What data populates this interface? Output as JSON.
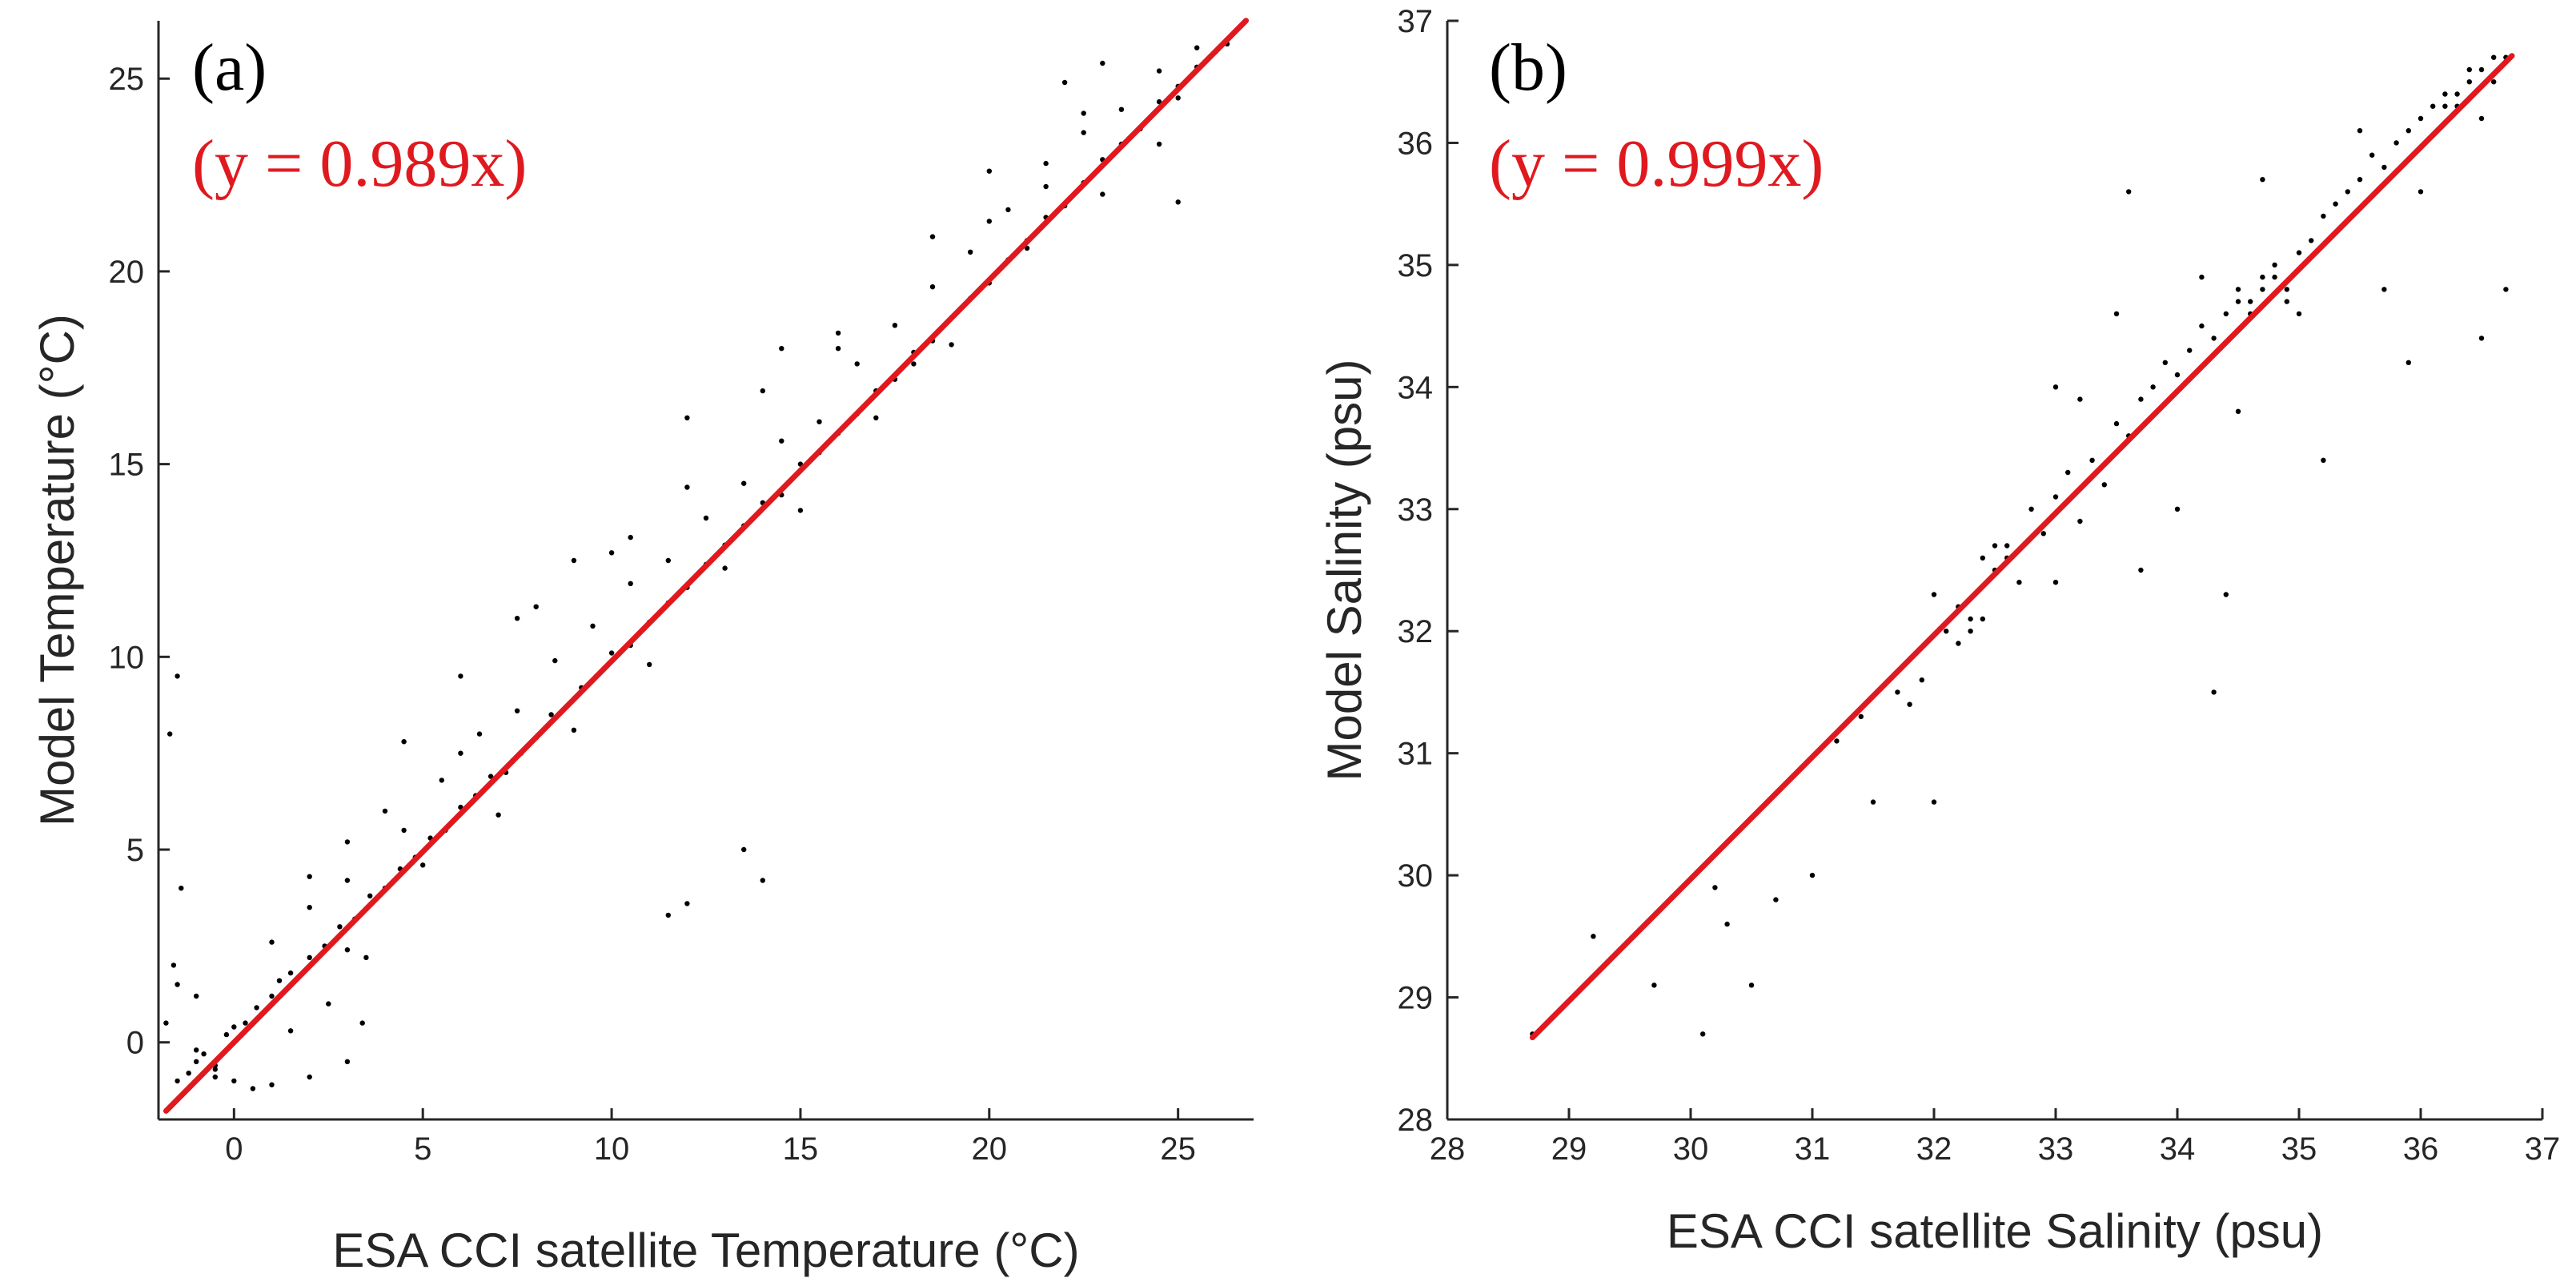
{
  "chart_data": [
    {
      "type": "scatter",
      "panel_label": "(a)",
      "equation": "(y = 0.989x)",
      "xlabel": "ESA CCI satellite Temperature (°C)",
      "ylabel": "Model Temperature (°C)",
      "xlim": [
        -2,
        27
      ],
      "ylim": [
        -2,
        26.5
      ],
      "xticks": [
        0,
        5,
        10,
        15,
        20,
        25
      ],
      "yticks": [
        0,
        5,
        10,
        15,
        20,
        25
      ],
      "grid": false,
      "fit_line": {
        "slope": 0.989,
        "x_range": [
          -1.8,
          26.8
        ],
        "color": "#e0191f"
      },
      "point_color": "#000000",
      "series": [
        {
          "description_of_points": "dense cloud of matched temperature pairs",
          "x": [
            -1.5,
            -1.2,
            -1.0,
            -0.8,
            -0.5,
            -0.2,
            0.0,
            0.3,
            0.6,
            1.0,
            1.2,
            1.5,
            2.0,
            2.4,
            2.8,
            3.2,
            3.6,
            4.0,
            4.4,
            4.8,
            5.2,
            5.6,
            6.0,
            6.4,
            6.8,
            7.2,
            7.6,
            8.0,
            8.4,
            8.8,
            9.2,
            9.6,
            10.0,
            10.5,
            11.0,
            11.5,
            12.0,
            12.5,
            13.0,
            13.5,
            14.0,
            14.5,
            15.0,
            15.5,
            16.0,
            16.5,
            17.0,
            17.5,
            18.0,
            18.5,
            19.0,
            19.5,
            20.0,
            20.5,
            21.0,
            21.5,
            22.0,
            22.5,
            23.0,
            23.5,
            24.0,
            24.5,
            25.0,
            25.5,
            26.0,
            26.3,
            -1.8,
            -1.6,
            -1.4,
            -1.0,
            0.5,
            1.0,
            2.0,
            2.5,
            3.0,
            3.5,
            4.5,
            5.5,
            6.5,
            7.5,
            8.5,
            9.5,
            10.5,
            11.5,
            12.5,
            13.5,
            14.5,
            15.5,
            16.5,
            17.5,
            18.5,
            19.5,
            20.5,
            21.5,
            22.5,
            23.5,
            24.5,
            25.5,
            -1.7,
            -1.5,
            -0.5,
            1.5,
            3.0,
            5.0,
            7.0,
            9.0,
            11.0,
            13.0,
            15.0,
            17.0,
            19.0,
            21.0,
            23.0,
            25.0,
            8.0,
            10.0,
            12.0,
            14.0,
            16.0,
            18.0,
            20.0,
            22.0,
            6.0,
            4.0,
            2.0,
            21.5,
            22.5,
            23.0,
            24.5,
            25.0,
            12.0,
            14.5,
            16.0,
            18.5,
            20.0,
            10.5,
            9.0,
            7.5,
            6.0,
            4.5,
            3.0,
            -1.5,
            -1.0,
            -0.5,
            0.0,
            1.0,
            2.0,
            3.0,
            3.4,
            13.5,
            14.0,
            12.0,
            11.5
          ],
          "y": [
            -1.0,
            -0.8,
            -0.5,
            -0.3,
            -0.6,
            0.2,
            0.4,
            0.5,
            0.9,
            1.2,
            1.6,
            1.8,
            2.2,
            2.5,
            3.0,
            3.2,
            3.8,
            4.0,
            4.5,
            4.8,
            5.3,
            5.5,
            6.1,
            6.4,
            6.9,
            7.0,
            7.5,
            7.9,
            8.5,
            8.7,
            9.2,
            9.5,
            10.1,
            10.3,
            10.9,
            11.4,
            11.8,
            12.4,
            12.9,
            13.4,
            14.0,
            14.2,
            15.0,
            15.3,
            15.8,
            16.3,
            16.9,
            17.2,
            17.9,
            18.2,
            18.8,
            19.3,
            19.7,
            20.3,
            20.8,
            21.4,
            21.7,
            22.3,
            22.9,
            23.3,
            23.7,
            24.4,
            24.8,
            25.3,
            25.7,
            25.9,
            0.5,
            2.0,
            4.0,
            -0.2,
            -1.2,
            2.6,
            3.5,
            1.0,
            4.2,
            2.2,
            5.5,
            6.8,
            8.0,
            8.6,
            9.9,
            10.8,
            11.9,
            12.5,
            13.6,
            14.5,
            15.6,
            16.1,
            17.6,
            18.6,
            19.6,
            20.5,
            21.6,
            22.2,
            23.6,
            24.2,
            25.2,
            25.8,
            8.0,
            9.5,
            -0.9,
            0.3,
            2.4,
            4.6,
            5.9,
            8.1,
            9.8,
            12.3,
            13.8,
            16.2,
            18.1,
            20.6,
            22.0,
            24.5,
            11.3,
            12.7,
            14.4,
            16.9,
            18.0,
            17.6,
            22.6,
            24.9,
            7.5,
            6.0,
            4.3,
            22.8,
            24.1,
            25.4,
            23.3,
            21.8,
            16.2,
            18.0,
            18.4,
            20.9,
            21.3,
            13.1,
            12.5,
            11.0,
            9.5,
            7.8,
            5.2,
            1.5,
            1.2,
            -0.7,
            -1.0,
            -1.1,
            -0.9,
            -0.5,
            0.5,
            5.0,
            4.2,
            3.6,
            3.3
          ]
        }
      ]
    },
    {
      "type": "scatter",
      "panel_label": "(b)",
      "equation": "(y = 0.999x)",
      "xlabel": "ESA CCI satellite Salinity (psu)",
      "ylabel": "Model Salinity (psu)",
      "xlim": [
        28,
        37
      ],
      "ylim": [
        28,
        37
      ],
      "xticks": [
        28,
        29,
        30,
        31,
        32,
        33,
        34,
        35,
        36,
        37
      ],
      "yticks": [
        28,
        29,
        30,
        31,
        32,
        33,
        34,
        35,
        36,
        37
      ],
      "grid": false,
      "fit_line": {
        "slope": 0.999,
        "x_range": [
          28.7,
          36.75
        ],
        "color": "#e0191f"
      },
      "point_color": "#000000",
      "series": [
        {
          "description_of_points": "matched salinity pairs",
          "x": [
            28.7,
            29.2,
            29.7,
            30.1,
            30.2,
            30.3,
            30.5,
            30.7,
            31.0,
            31.2,
            31.4,
            31.5,
            31.7,
            31.9,
            32.0,
            32.1,
            32.2,
            32.3,
            32.4,
            32.5,
            32.6,
            32.7,
            32.8,
            32.9,
            33.0,
            33.1,
            33.2,
            33.3,
            33.4,
            33.5,
            33.6,
            33.7,
            33.8,
            33.9,
            34.0,
            34.1,
            34.2,
            34.3,
            34.4,
            34.5,
            34.6,
            34.7,
            34.8,
            34.9,
            35.0,
            35.1,
            35.2,
            35.3,
            35.4,
            35.5,
            35.6,
            35.7,
            35.8,
            35.9,
            36.0,
            36.1,
            36.2,
            36.3,
            36.4,
            36.5,
            36.6,
            36.7,
            32.3,
            32.4,
            32.5,
            32.2,
            32.6,
            34.6,
            34.7,
            34.8,
            34.5,
            34.9,
            36.3,
            36.4,
            36.5,
            36.6,
            36.2,
            33.0,
            33.5,
            34.0,
            34.5,
            35.0,
            35.5,
            36.0,
            33.2,
            33.7,
            34.2,
            34.7,
            35.2,
            35.7,
            36.5,
            31.8,
            32.0,
            33.0,
            33.6,
            34.3,
            34.4,
            35.9,
            36.7
          ],
          "y": [
            28.7,
            29.5,
            29.1,
            28.7,
            29.9,
            29.6,
            29.1,
            29.8,
            30.0,
            31.1,
            31.3,
            30.6,
            31.5,
            31.6,
            32.3,
            32.0,
            32.2,
            32.1,
            32.6,
            32.5,
            32.7,
            32.4,
            33.0,
            32.8,
            33.1,
            33.3,
            32.9,
            33.4,
            33.2,
            33.7,
            33.6,
            33.9,
            34.0,
            34.2,
            34.1,
            34.3,
            34.5,
            34.4,
            34.6,
            34.8,
            34.7,
            34.9,
            35.0,
            34.8,
            35.1,
            35.2,
            35.4,
            35.5,
            35.6,
            35.7,
            35.9,
            35.8,
            36.0,
            36.1,
            36.2,
            36.3,
            36.4,
            36.3,
            36.5,
            36.6,
            36.5,
            36.7,
            32.0,
            32.1,
            32.7,
            31.9,
            32.6,
            34.6,
            34.8,
            34.9,
            34.7,
            34.7,
            36.4,
            36.6,
            36.2,
            36.7,
            36.3,
            32.4,
            34.6,
            33.0,
            33.8,
            34.6,
            36.1,
            35.6,
            33.9,
            32.5,
            34.9,
            35.7,
            33.4,
            34.8,
            34.4,
            31.4,
            30.6,
            34.0,
            35.6,
            31.5,
            32.3,
            34.2,
            34.8
          ]
        }
      ]
    }
  ]
}
